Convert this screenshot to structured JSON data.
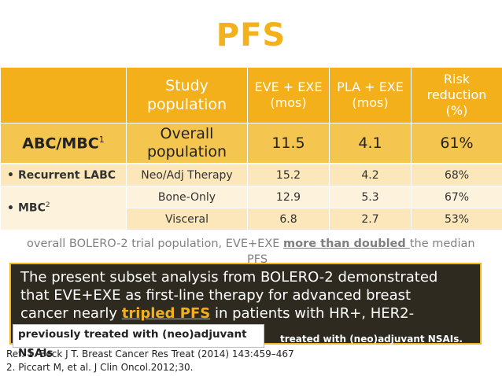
{
  "title": "PFS",
  "table": {
    "headers": [
      "",
      "Study population",
      "EVE + EXE (mos)",
      "PLA + EXE (mos)",
      "Risk reduction (%)"
    ],
    "header_lines": {
      "study": [
        "Study",
        "population"
      ],
      "eve": [
        "EVE + EXE",
        "(mos)"
      ],
      "pla": [
        "PLA + EXE",
        "(mos)"
      ],
      "risk": [
        "Risk",
        "reduction",
        "(%)"
      ]
    },
    "abc_row": {
      "label": "ABC/MBC",
      "sup": "1",
      "population": [
        "Overall",
        "population"
      ],
      "eve": "11.5",
      "pla": "4.1",
      "risk": "61%"
    },
    "rows": [
      {
        "bullet": "•",
        "label": "Recurrent LABC",
        "sup": "",
        "population": "Neo/Adj Therapy",
        "eve": "15.2",
        "pla": "4.2",
        "risk": "68%"
      },
      {
        "bullet": "•",
        "label": "MBC",
        "sup": "2",
        "population": "Bone-Only",
        "eve": "12.9",
        "pla": "5.3",
        "risk": "67%"
      },
      {
        "population": "Visceral",
        "eve": "6.8",
        "pla": "2.7",
        "risk": "53%"
      }
    ]
  },
  "background_text": {
    "part1": "overall BOLERO-2 trial population, EVE+EXE ",
    "highlight": "more than doubled ",
    "part2": "the median",
    "line2": "PFS"
  },
  "overlay": {
    "line1": "The present subset analysis from BOLERO-2 demonstrated",
    "line2": "that EVE+EXE as first-line therapy for advanced breast",
    "line3_pre": "cancer nearly ",
    "tripled": "tripled PFS",
    "line3_post": " in patients with HR+, HER2-",
    "tail": "treated with (neo)adjuvant NSAIs."
  },
  "popup": {
    "line1": "previously treated with (neo)adjuvant",
    "line2": "NSAIs"
  },
  "references": [
    "Ref: 1. Beck J T. Breast Cancer Res Treat (2014) 143:459–467",
    "2. Piccart M, et al. J Clin Oncol.2012;30."
  ],
  "colors": {
    "accent": "#f4b01a",
    "header_bg": "#f4b01a",
    "abc_bg": "#f5c64f",
    "row_light": "#fbe7b9",
    "row_lighter": "#fdf3dc",
    "overlay_bg": "#2e2a20"
  }
}
